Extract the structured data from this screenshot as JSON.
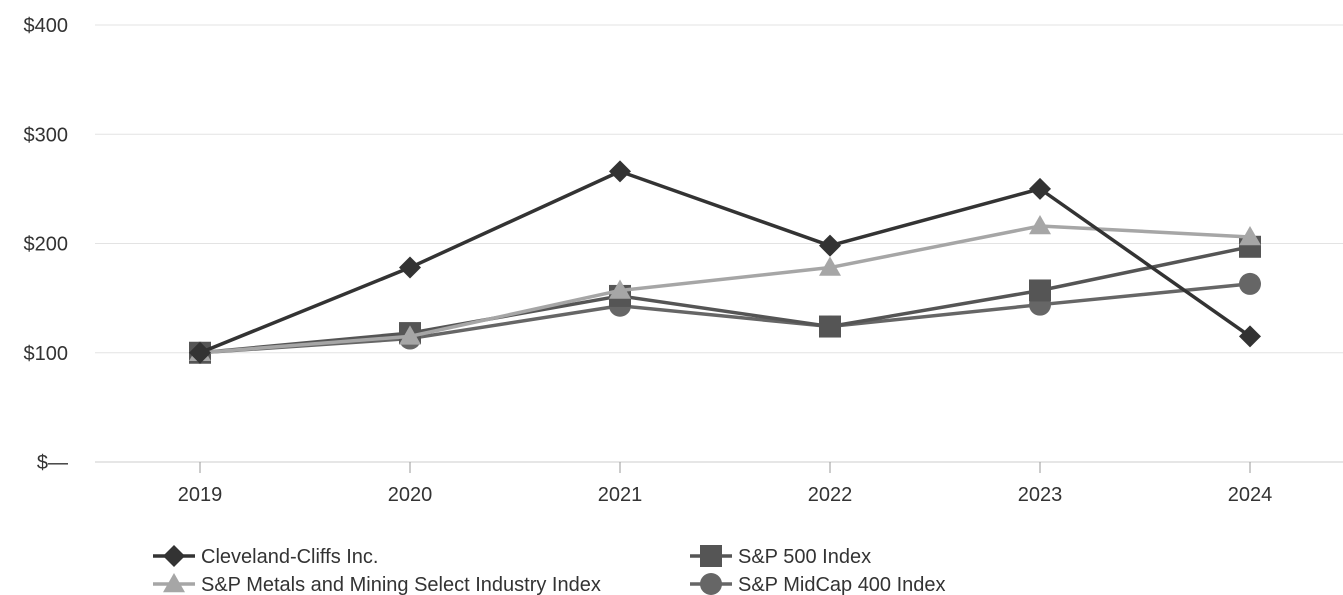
{
  "chart_data": {
    "type": "line",
    "categories": [
      "2019",
      "2020",
      "2021",
      "2022",
      "2023",
      "2024"
    ],
    "y_tick_labels": [
      "$—",
      "$100",
      "$200",
      "$300",
      "$400"
    ],
    "y_tick_values": [
      0,
      100,
      200,
      300,
      400
    ],
    "ylim": [
      0,
      400
    ],
    "grid": true,
    "legend_position": "bottom",
    "series": [
      {
        "name": "Cleveland-Cliffs Inc.",
        "marker": "diamond",
        "color": "#333333",
        "values": [
          100,
          178,
          266,
          198,
          250,
          115
        ]
      },
      {
        "name": "S&P 500 Index",
        "marker": "square",
        "color": "#555555",
        "values": [
          100,
          118,
          152,
          124,
          157,
          197
        ]
      },
      {
        "name": "S&P Metals and Mining Select Industry Index",
        "marker": "triangle",
        "color": "#a6a6a6",
        "values": [
          100,
          115,
          157,
          178,
          216,
          206
        ]
      },
      {
        "name": "S&P MidCap 400 Index",
        "marker": "circle",
        "color": "#666666",
        "values": [
          100,
          113,
          143,
          124,
          144,
          163
        ]
      }
    ]
  }
}
